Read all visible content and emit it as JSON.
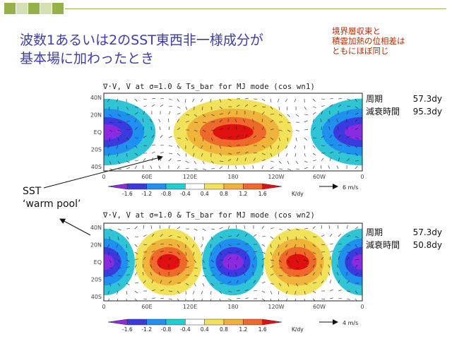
{
  "slide": {
    "title": "波数1あるいは2のSST東西非一様成分が\n基本場に加わったとき",
    "note": "境界層収束と\n積雲加熱の位相差は\nともにほぼ同じ",
    "sst_label": "SST\n‘warm pool’",
    "colors": {
      "title": "#3d3da6",
      "note": "#b52a00",
      "deco_green": "#96b148",
      "deco_light": "#d5e0b4"
    }
  },
  "panels": [
    {
      "title": "∇·V, V at σ=1.0 & Ts_bar for MJ mode (cos wn1)",
      "lat_ticks": [
        "40N",
        "20N",
        "EQ",
        "20S",
        "40S"
      ],
      "lon_ticks": [
        "0",
        "60E",
        "120E",
        "180",
        "120W",
        "60W",
        "0"
      ],
      "colorbar_ticks": [
        "-1.6",
        "-1.2",
        "-0.8",
        "-0.4",
        "0.4",
        "0.8",
        "1.2",
        "1.6"
      ],
      "colorbar_unit": "K/dy",
      "vector_scale": "6 m/s",
      "stats": [
        {
          "label": "周期",
          "value": "57.3dy"
        },
        {
          "label": "減衰時間",
          "value": "95.3dy"
        }
      ]
    },
    {
      "title": "∇·V, V at σ=1.0 & Ts_bar for MJ mode (cos wn2)",
      "lat_ticks": [
        "40N",
        "20N",
        "EQ",
        "20S",
        "40S"
      ],
      "lon_ticks": [
        "0",
        "60E",
        "120E",
        "180",
        "120W",
        "60W",
        "0"
      ],
      "colorbar_ticks": [
        "-1.6",
        "-1.2",
        "-0.8",
        "-0.4",
        "0.4",
        "0.8",
        "1.2",
        "1.6"
      ],
      "colorbar_unit": "K/dy",
      "vector_scale": "4 m/s",
      "stats": [
        {
          "label": "周期",
          "value": "57.3dy"
        },
        {
          "label": "減衰時間",
          "value": "50.8dy"
        }
      ]
    }
  ]
}
